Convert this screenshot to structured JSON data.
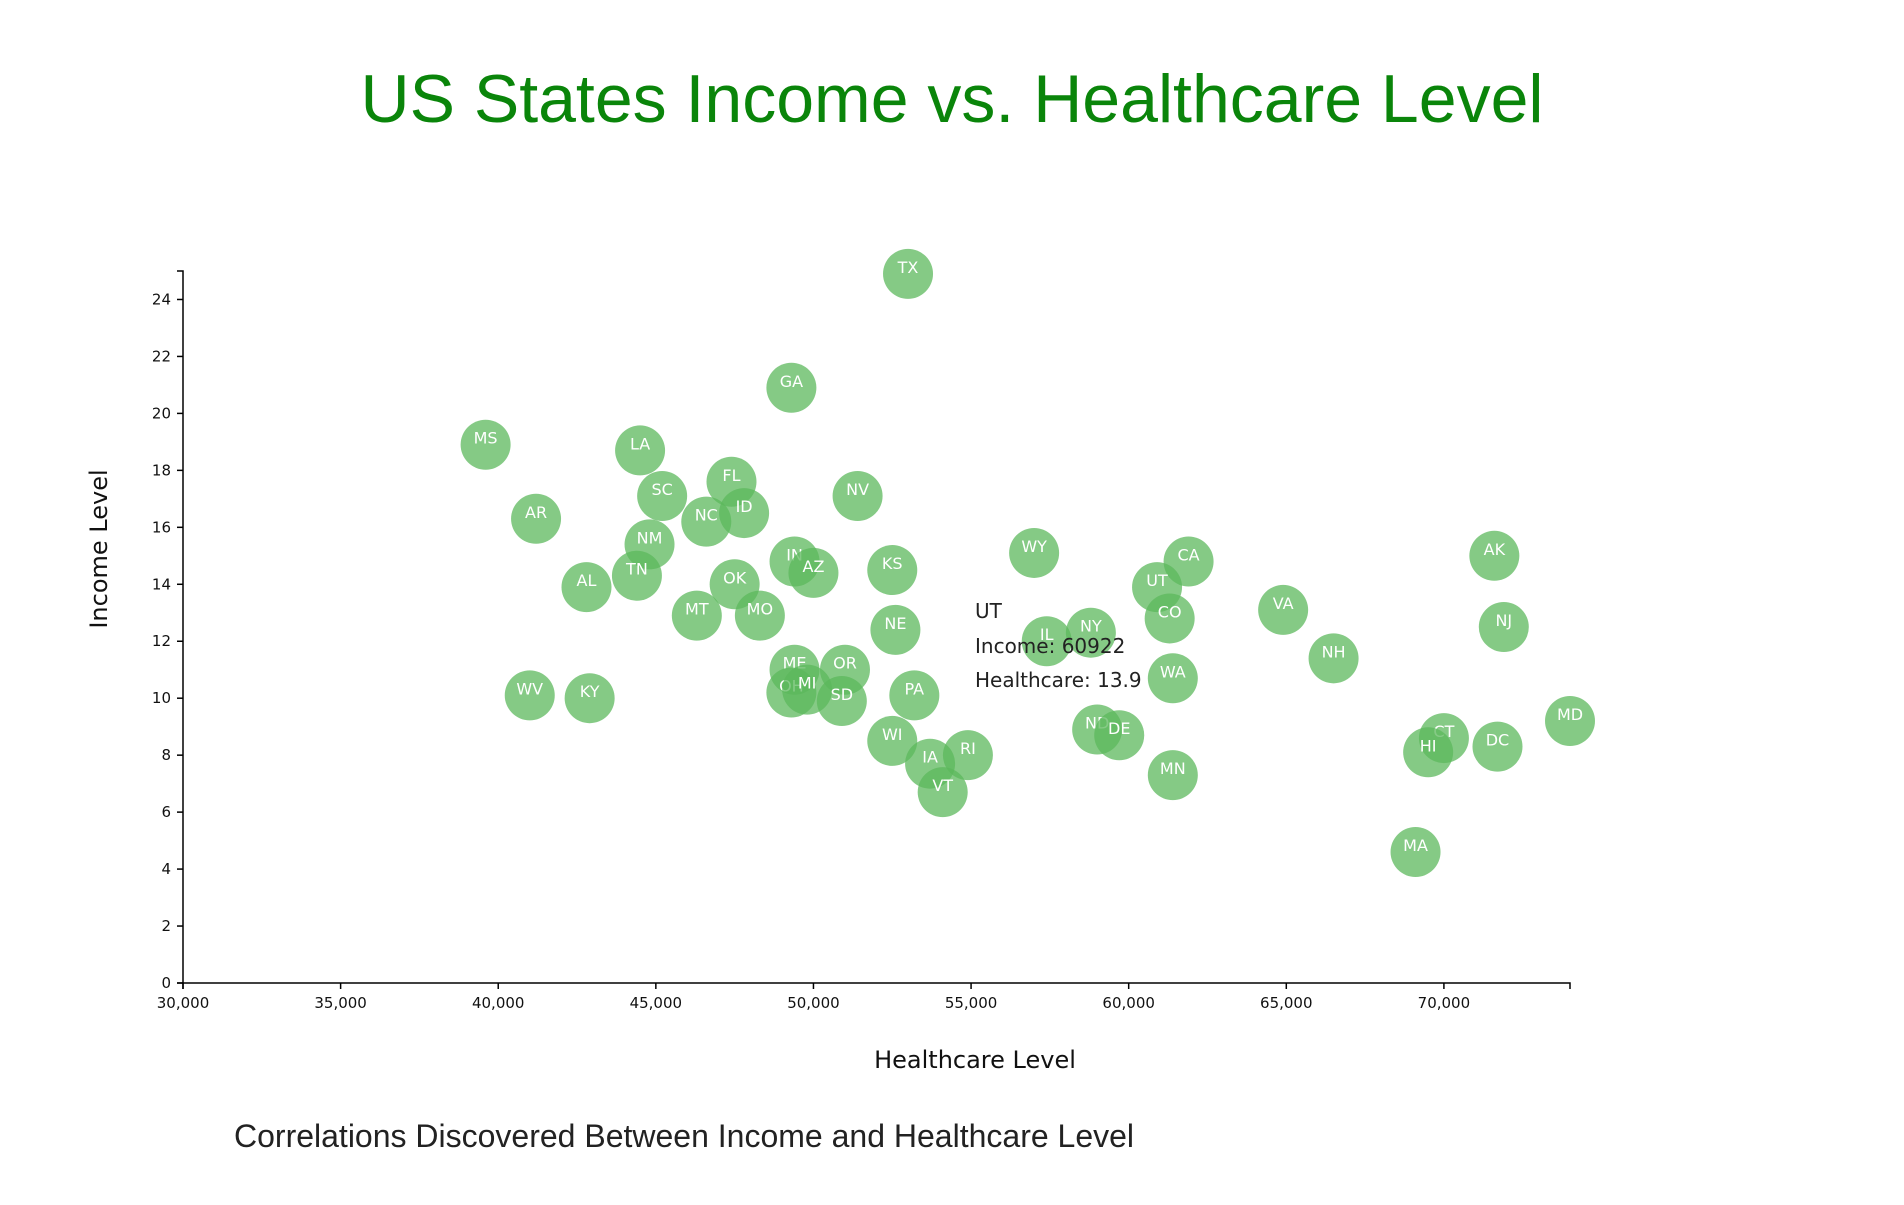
{
  "title": "US States Income vs. Healthcare Level",
  "footer": "Correlations Discovered Between Income and Healthcare Level",
  "colors": {
    "title": "#0a850a",
    "bubble": "#5cb85c",
    "axis": "#000000"
  },
  "tooltip": {
    "state": "UT",
    "income_text": "Income: 60922",
    "healthcare_text": "Healthcare: 13.9"
  },
  "chart_data": {
    "type": "scatter",
    "xlabel": "Healthcare Level",
    "ylabel": "Income Level",
    "xlim": [
      30000,
      74000
    ],
    "ylim": [
      0,
      25
    ],
    "x_ticks": [
      30000,
      35000,
      40000,
      45000,
      50000,
      55000,
      60000,
      65000,
      70000
    ],
    "x_tick_labels": [
      "30,000",
      "35,000",
      "40,000",
      "45,000",
      "50,000",
      "55,000",
      "60,000",
      "65,000",
      "70,000"
    ],
    "y_ticks": [
      0,
      2,
      4,
      6,
      8,
      10,
      12,
      14,
      16,
      18,
      20,
      22,
      24
    ],
    "y_tick_labels": [
      "0",
      "2",
      "4",
      "6",
      "8",
      "10",
      "12",
      "14",
      "16",
      "18",
      "20",
      "22",
      "24"
    ],
    "points": [
      {
        "label": "TX",
        "x": 53000,
        "y": 24.9
      },
      {
        "label": "GA",
        "x": 49300,
        "y": 20.9
      },
      {
        "label": "MS",
        "x": 39600,
        "y": 18.9
      },
      {
        "label": "LA",
        "x": 44500,
        "y": 18.7
      },
      {
        "label": "FL",
        "x": 47400,
        "y": 17.6
      },
      {
        "label": "SC",
        "x": 45200,
        "y": 17.1
      },
      {
        "label": "NV",
        "x": 51400,
        "y": 17.1
      },
      {
        "label": "AR",
        "x": 41200,
        "y": 16.3
      },
      {
        "label": "ID",
        "x": 47800,
        "y": 16.5
      },
      {
        "label": "NC",
        "x": 46600,
        "y": 16.2
      },
      {
        "label": "NM",
        "x": 44800,
        "y": 15.4
      },
      {
        "label": "WY",
        "x": 57000,
        "y": 15.1
      },
      {
        "label": "AK",
        "x": 71600,
        "y": 15.0
      },
      {
        "label": "IN",
        "x": 49400,
        "y": 14.8
      },
      {
        "label": "CA",
        "x": 61900,
        "y": 14.8
      },
      {
        "label": "KS",
        "x": 52500,
        "y": 14.5
      },
      {
        "label": "AZ",
        "x": 50000,
        "y": 14.4
      },
      {
        "label": "TN",
        "x": 44400,
        "y": 14.3
      },
      {
        "label": "AL",
        "x": 42800,
        "y": 13.9
      },
      {
        "label": "OK",
        "x": 47500,
        "y": 14.0
      },
      {
        "label": "UT",
        "x": 60900,
        "y": 13.9
      },
      {
        "label": "VA",
        "x": 64900,
        "y": 13.1
      },
      {
        "label": "MT",
        "x": 46300,
        "y": 12.9
      },
      {
        "label": "MO",
        "x": 48300,
        "y": 12.9
      },
      {
        "label": "CO",
        "x": 61300,
        "y": 12.8
      },
      {
        "label": "NJ",
        "x": 71900,
        "y": 12.5
      },
      {
        "label": "NE",
        "x": 52600,
        "y": 12.4
      },
      {
        "label": "NY",
        "x": 58800,
        "y": 12.3
      },
      {
        "label": "IL",
        "x": 57400,
        "y": 12.0
      },
      {
        "label": "NH",
        "x": 66500,
        "y": 11.4
      },
      {
        "label": "ME",
        "x": 49400,
        "y": 11.0
      },
      {
        "label": "OR",
        "x": 51000,
        "y": 11.0
      },
      {
        "label": "WA",
        "x": 61400,
        "y": 10.7
      },
      {
        "label": "OH",
        "x": 49300,
        "y": 10.2
      },
      {
        "label": "MI",
        "x": 49800,
        "y": 10.3
      },
      {
        "label": "WV",
        "x": 41000,
        "y": 10.1
      },
      {
        "label": "PA",
        "x": 53200,
        "y": 10.1
      },
      {
        "label": "KY",
        "x": 42900,
        "y": 10.0
      },
      {
        "label": "SD",
        "x": 50900,
        "y": 9.9
      },
      {
        "label": "MD",
        "x": 74000,
        "y": 9.2
      },
      {
        "label": "ND",
        "x": 59000,
        "y": 8.9
      },
      {
        "label": "DE",
        "x": 59700,
        "y": 8.7
      },
      {
        "label": "CT",
        "x": 70000,
        "y": 8.6
      },
      {
        "label": "WI",
        "x": 52500,
        "y": 8.5
      },
      {
        "label": "DC",
        "x": 71700,
        "y": 8.3
      },
      {
        "label": "HI",
        "x": 69500,
        "y": 8.1
      },
      {
        "label": "RI",
        "x": 54900,
        "y": 8.0
      },
      {
        "label": "IA",
        "x": 53700,
        "y": 7.7
      },
      {
        "label": "MN",
        "x": 61400,
        "y": 7.3
      },
      {
        "label": "VT",
        "x": 54100,
        "y": 6.7
      },
      {
        "label": "MA",
        "x": 69100,
        "y": 4.6
      }
    ]
  }
}
